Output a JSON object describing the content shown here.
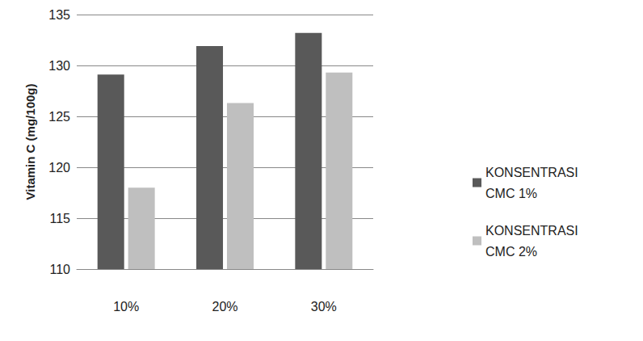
{
  "chart_data": {
    "type": "bar",
    "categories": [
      "10%",
      "20%",
      "30%"
    ],
    "series": [
      {
        "name": "KONSENTRASI CMC 1%",
        "color": "#595959",
        "values": [
          129.1,
          131.9,
          133.2
        ]
      },
      {
        "name": "KONSENTRASI CMC 2%",
        "color": "#bfbfbf",
        "values": [
          118.0,
          126.3,
          129.3
        ]
      }
    ],
    "y_label": "Vitamin C (mg/100g)",
    "ylim": [
      110,
      135
    ],
    "yticks": [
      110,
      115,
      120,
      125,
      130,
      135
    ],
    "grid": true,
    "legend": "right"
  }
}
